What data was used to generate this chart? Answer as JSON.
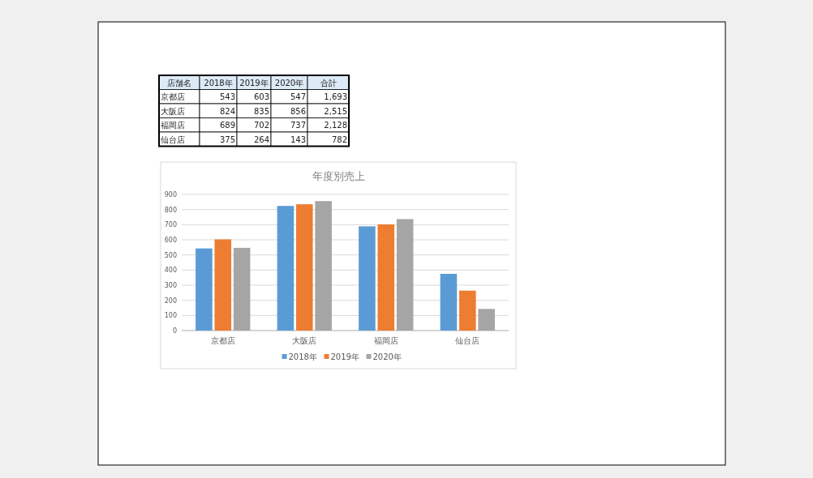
{
  "chart_data": [
    {
      "type": "other",
      "categories": [
        "店舗名",
        "2018年",
        "2019年",
        "2020年",
        "合計"
      ],
      "annotations": [
        "京都店",
        "543",
        "603",
        "547",
        "1,693",
        "大阪店",
        "824",
        "835",
        "856",
        "2,515",
        "福岡店",
        "689",
        "702",
        "737",
        "2,128",
        "仙台店",
        "375",
        "264",
        "143",
        "782"
      ]
    },
    {
      "type": "bar",
      "title": "年度別売上",
      "categories": [
        "京都店",
        "大阪店",
        "福岡店",
        "仙台店"
      ],
      "series": [
        {
          "name": "2018年",
          "color": "#5b9bd5",
          "values": [
            543,
            824,
            689,
            375
          ]
        },
        {
          "name": "2019年",
          "color": "#ed7d31",
          "values": [
            603,
            835,
            702,
            264
          ]
        },
        {
          "name": "2020年",
          "color": "#a5a5a5",
          "values": [
            547,
            856,
            737,
            143
          ]
        }
      ],
      "ylim": [
        0,
        900
      ],
      "yticks": [
        0,
        100,
        200,
        300,
        400,
        500,
        600,
        700,
        800,
        900
      ],
      "grid": "y",
      "legend": "bottom"
    }
  ]
}
